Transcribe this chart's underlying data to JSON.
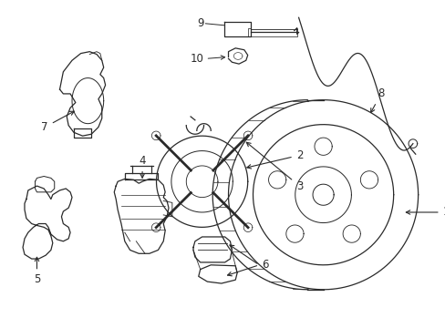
{
  "background_color": "#ffffff",
  "line_color": "#2a2a2a",
  "line_width": 0.9,
  "label_fontsize": 8.5,
  "fig_width": 4.89,
  "fig_height": 3.6,
  "dpi": 100
}
